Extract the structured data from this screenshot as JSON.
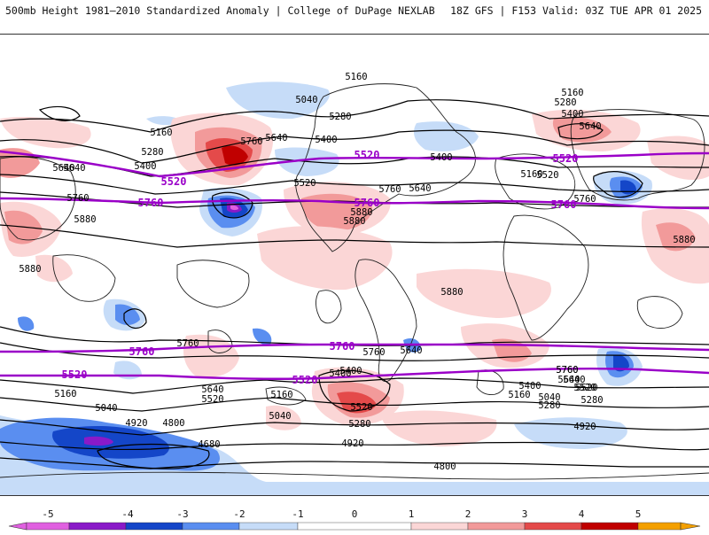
{
  "header": {
    "left_title": "500mb Height 1981–2010 Standardized Anomaly | College of DuPage NEXLAB",
    "right_title": "18Z GFS | F153 Valid: 03Z TUE APR 01 2025"
  },
  "colors": {
    "anom_neg5": "#e060e0",
    "anom_neg4": "#8a1ac8",
    "anom_neg3": "#1446c8",
    "anom_neg2": "#5a8ef0",
    "anom_neg1": "#c6dcf8",
    "anom_pos1": "#fbd6d6",
    "anom_pos2": "#f29a9a",
    "anom_pos3": "#e44a4a",
    "anom_pos4": "#c00000",
    "anom_pos5": "#f4a000",
    "contour": "#000000",
    "highlight_contour": "#9a00c8",
    "coast": "#202020"
  },
  "colorbar": {
    "ticks": [
      "-5",
      "-4",
      "-3",
      "-2",
      "-1",
      "0",
      "1",
      "2",
      "3",
      "4",
      "5"
    ]
  },
  "contour_labels": {
    "black": [
      "5160",
      "5040",
      "5280",
      "5400",
      "5640",
      "5160",
      "5280",
      "5400",
      "5640",
      "5160",
      "5280",
      "5640",
      "5400",
      "5760",
      "5640",
      "5520",
      "5400",
      "5160",
      "5520",
      "5760",
      "5880",
      "5760",
      "5640",
      "5760",
      "5880",
      "5880",
      "5880",
      "5880",
      "5880",
      "5760",
      "5640",
      "5760",
      "5400",
      "5160",
      "5040",
      "4920",
      "4800",
      "4680",
      "5640",
      "5520",
      "5160",
      "5040",
      "5280",
      "4920",
      "5400",
      "5520",
      "5640",
      "5760",
      "5400",
      "5160",
      "5520",
      "5280",
      "5040",
      "4920",
      "5280",
      "5640",
      "5760",
      "5520",
      "4800"
    ],
    "purple": [
      "5520",
      "5520",
      "5760",
      "5760",
      "5760",
      "5520",
      "5760",
      "5760",
      "5520",
      "5520"
    ]
  }
}
